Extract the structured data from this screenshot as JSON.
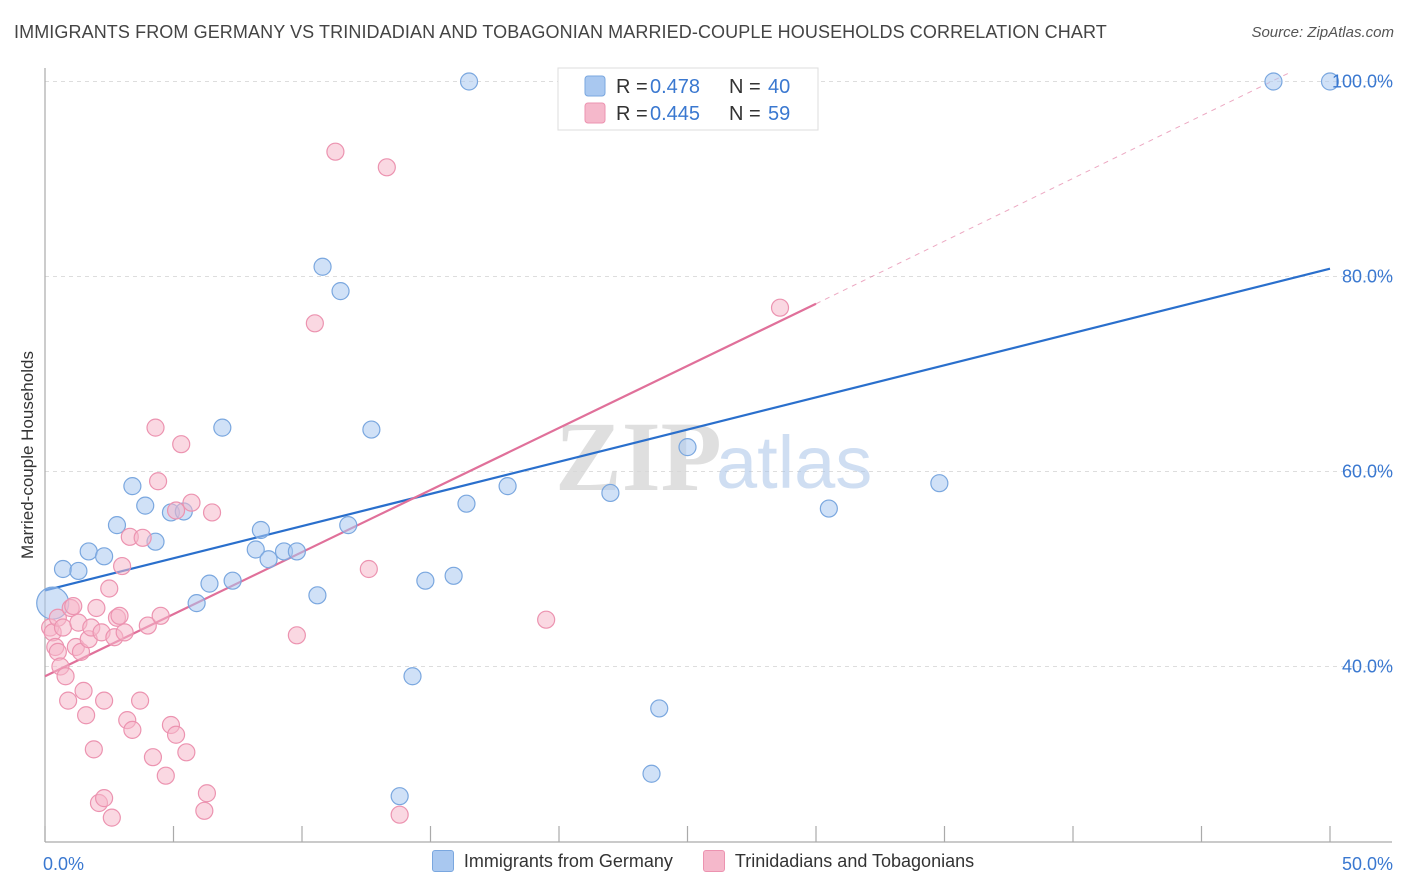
{
  "title": "IMMIGRANTS FROM GERMANY VS TRINIDADIAN AND TOBAGONIAN MARRIED-COUPLE HOUSEHOLDS CORRELATION CHART",
  "source": "Source: ZipAtlas.com",
  "watermark": {
    "zip": "ZIP",
    "atlas": "atlas"
  },
  "colors": {
    "blue_fill": "#a9c8f0",
    "blue_stroke": "#7aa7df",
    "blue_line": "#2a6fcc",
    "pink_fill": "#f5b8cb",
    "pink_stroke": "#ec93b0",
    "pink_line": "#e0709a",
    "axis_label": "#3a78d0",
    "grid": "#dddddd"
  },
  "chart_data": {
    "type": "scatter",
    "xlabel": "",
    "ylabel": "Married-couple Households",
    "xlim": [
      0,
      50
    ],
    "ylim": [
      22,
      102
    ],
    "x_tick_labels": [
      {
        "value": 0,
        "label": "0.0%"
      },
      {
        "value": 50,
        "label": "50.0%"
      }
    ],
    "y_tick_labels": [
      {
        "value": 40,
        "label": "40.0%"
      },
      {
        "value": 60,
        "label": "60.0%"
      },
      {
        "value": 80,
        "label": "80.0%"
      },
      {
        "value": 100,
        "label": "100.0%"
      }
    ],
    "x_minor_ticks": [
      0,
      5,
      10,
      15,
      20,
      25,
      30,
      35,
      40,
      45,
      50
    ],
    "grid": true,
    "legend_position": "top-center",
    "series": [
      {
        "name": "Immigrants from Germany",
        "color": "blue",
        "R": "0.478",
        "N": "40",
        "points": [
          [
            0.3,
            46.5
          ],
          [
            0.7,
            50.0
          ],
          [
            1.3,
            49.8
          ],
          [
            1.7,
            51.8
          ],
          [
            2.3,
            51.3
          ],
          [
            2.8,
            54.5
          ],
          [
            3.4,
            58.5
          ],
          [
            3.9,
            56.5
          ],
          [
            4.3,
            52.8
          ],
          [
            4.9,
            55.8
          ],
          [
            5.4,
            55.9
          ],
          [
            5.9,
            46.5
          ],
          [
            6.4,
            48.5
          ],
          [
            6.9,
            64.5
          ],
          [
            7.3,
            48.8
          ],
          [
            8.2,
            52.0
          ],
          [
            8.4,
            54.0
          ],
          [
            8.7,
            51.0
          ],
          [
            9.3,
            51.8
          ],
          [
            9.8,
            51.8
          ],
          [
            10.6,
            47.3
          ],
          [
            10.8,
            81.0
          ],
          [
            11.5,
            78.5
          ],
          [
            11.8,
            54.5
          ],
          [
            12.7,
            64.3
          ],
          [
            13.8,
            26.7
          ],
          [
            14.3,
            39.0
          ],
          [
            14.8,
            48.8
          ],
          [
            15.9,
            49.3
          ],
          [
            16.4,
            56.7
          ],
          [
            16.5,
            100.0
          ],
          [
            18.0,
            58.5
          ],
          [
            22.0,
            57.8
          ],
          [
            23.6,
            29.0
          ],
          [
            23.9,
            35.7
          ],
          [
            25.0,
            62.5
          ],
          [
            30.5,
            56.2
          ],
          [
            34.8,
            58.8
          ],
          [
            47.8,
            100.0
          ],
          [
            50.0,
            100.0
          ]
        ]
      },
      {
        "name": "Trinidadians and Tobagonians",
        "color": "pink",
        "R": "0.445",
        "N": "59",
        "points": [
          [
            0.2,
            44.0
          ],
          [
            0.3,
            43.5
          ],
          [
            0.4,
            42.0
          ],
          [
            0.5,
            41.5
          ],
          [
            0.5,
            45.0
          ],
          [
            0.6,
            40.0
          ],
          [
            0.7,
            44.0
          ],
          [
            0.8,
            39.0
          ],
          [
            0.9,
            36.5
          ],
          [
            1.0,
            46.0
          ],
          [
            1.1,
            46.2
          ],
          [
            1.2,
            42.0
          ],
          [
            1.3,
            44.5
          ],
          [
            1.4,
            41.5
          ],
          [
            1.5,
            37.5
          ],
          [
            1.6,
            35.0
          ],
          [
            1.7,
            42.8
          ],
          [
            1.8,
            44.0
          ],
          [
            1.9,
            31.5
          ],
          [
            2.0,
            46.0
          ],
          [
            2.1,
            26.0
          ],
          [
            2.2,
            43.5
          ],
          [
            2.3,
            26.5
          ],
          [
            2.3,
            36.5
          ],
          [
            2.5,
            48.0
          ],
          [
            2.6,
            24.5
          ],
          [
            2.7,
            43.0
          ],
          [
            2.8,
            45.0
          ],
          [
            2.9,
            45.2
          ],
          [
            3.0,
            50.3
          ],
          [
            3.1,
            43.5
          ],
          [
            3.2,
            34.5
          ],
          [
            3.3,
            53.3
          ],
          [
            3.4,
            33.5
          ],
          [
            3.7,
            36.5
          ],
          [
            3.8,
            53.2
          ],
          [
            4.0,
            44.2
          ],
          [
            4.2,
            30.7
          ],
          [
            4.3,
            64.5
          ],
          [
            4.4,
            59.0
          ],
          [
            4.5,
            45.2
          ],
          [
            4.7,
            28.8
          ],
          [
            4.9,
            34.0
          ],
          [
            5.1,
            56.0
          ],
          [
            5.1,
            33.0
          ],
          [
            5.3,
            62.8
          ],
          [
            5.5,
            31.2
          ],
          [
            5.7,
            56.8
          ],
          [
            6.2,
            25.2
          ],
          [
            6.3,
            27.0
          ],
          [
            6.5,
            55.8
          ],
          [
            9.8,
            43.2
          ],
          [
            10.5,
            75.2
          ],
          [
            11.3,
            92.8
          ],
          [
            12.6,
            50.0
          ],
          [
            13.3,
            91.2
          ],
          [
            13.8,
            24.8
          ],
          [
            19.5,
            44.8
          ],
          [
            28.6,
            76.8
          ]
        ]
      }
    ],
    "trend_lines": [
      {
        "series": "Immigrants from Germany",
        "x0": 0,
        "y0": 47.8,
        "x1": 50,
        "y1": 80.8,
        "dashed_to": null
      },
      {
        "series": "Trinidadians and Tobagonians",
        "x0": 0,
        "y0": 39.0,
        "x1": 30,
        "y1": 77.2,
        "dashed_to": [
          48.5,
          101.0
        ]
      }
    ]
  },
  "legend_top": {
    "r_prefix": "R =",
    "n_prefix": "N ="
  }
}
